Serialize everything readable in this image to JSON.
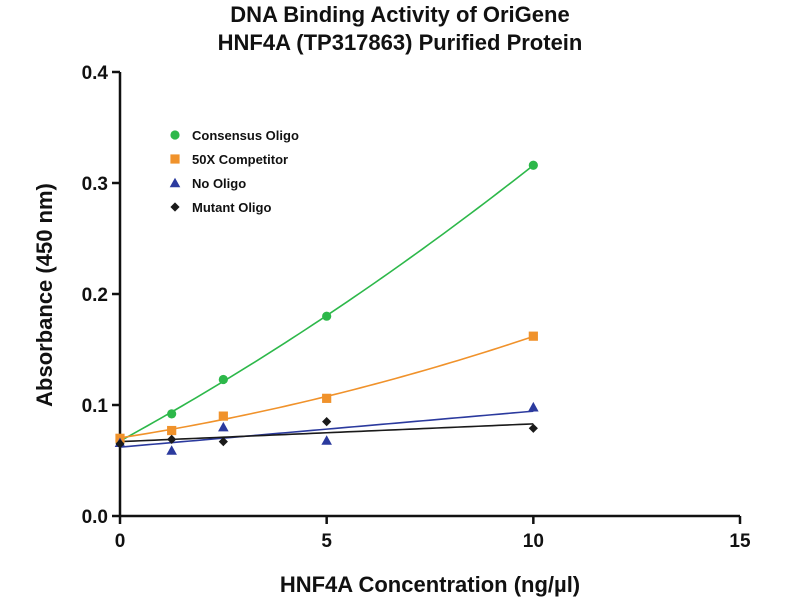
{
  "chart_data": {
    "type": "scatter",
    "title_lines": [
      "DNA Binding Activity of OriGene",
      "HNF4A (TP317863) Purified Protein"
    ],
    "xlabel": "HNF4A Concentration (ng/µl)",
    "ylabel": "Absorbance (450 nm)",
    "xlim": [
      0,
      15
    ],
    "ylim": [
      0,
      0.4
    ],
    "x_ticks": [
      0,
      5,
      10,
      15
    ],
    "y_ticks": [
      0.0,
      0.1,
      0.2,
      0.3,
      0.4
    ],
    "x_tick_labels": [
      "0",
      "5",
      "10",
      "15"
    ],
    "y_tick_labels": [
      "0.0",
      "0.1",
      "0.2",
      "0.3",
      "0.4"
    ],
    "grid": false,
    "legend_position": "top-left",
    "fitted_curves": true,
    "series": [
      {
        "name": "Consensus Oligo",
        "color": "#2db84a",
        "marker": "circle",
        "x": [
          0,
          1.25,
          2.5,
          5,
          10
        ],
        "y": [
          0.068,
          0.092,
          0.123,
          0.18,
          0.316
        ]
      },
      {
        "name": "50X Competitor",
        "color": "#f0922b",
        "marker": "square",
        "x": [
          0,
          1.25,
          2.5,
          5,
          10
        ],
        "y": [
          0.07,
          0.077,
          0.09,
          0.106,
          0.162
        ]
      },
      {
        "name": "No Oligo",
        "color": "#2b3a9e",
        "marker": "triangle",
        "x": [
          0,
          1.25,
          2.5,
          5,
          10
        ],
        "y": [
          0.066,
          0.059,
          0.08,
          0.068,
          0.098
        ]
      },
      {
        "name": "Mutant Oligo",
        "color": "#1a1a1a",
        "marker": "diamond",
        "x": [
          0,
          1.25,
          2.5,
          5,
          10
        ],
        "y": [
          0.065,
          0.069,
          0.067,
          0.085,
          0.079
        ]
      }
    ]
  }
}
